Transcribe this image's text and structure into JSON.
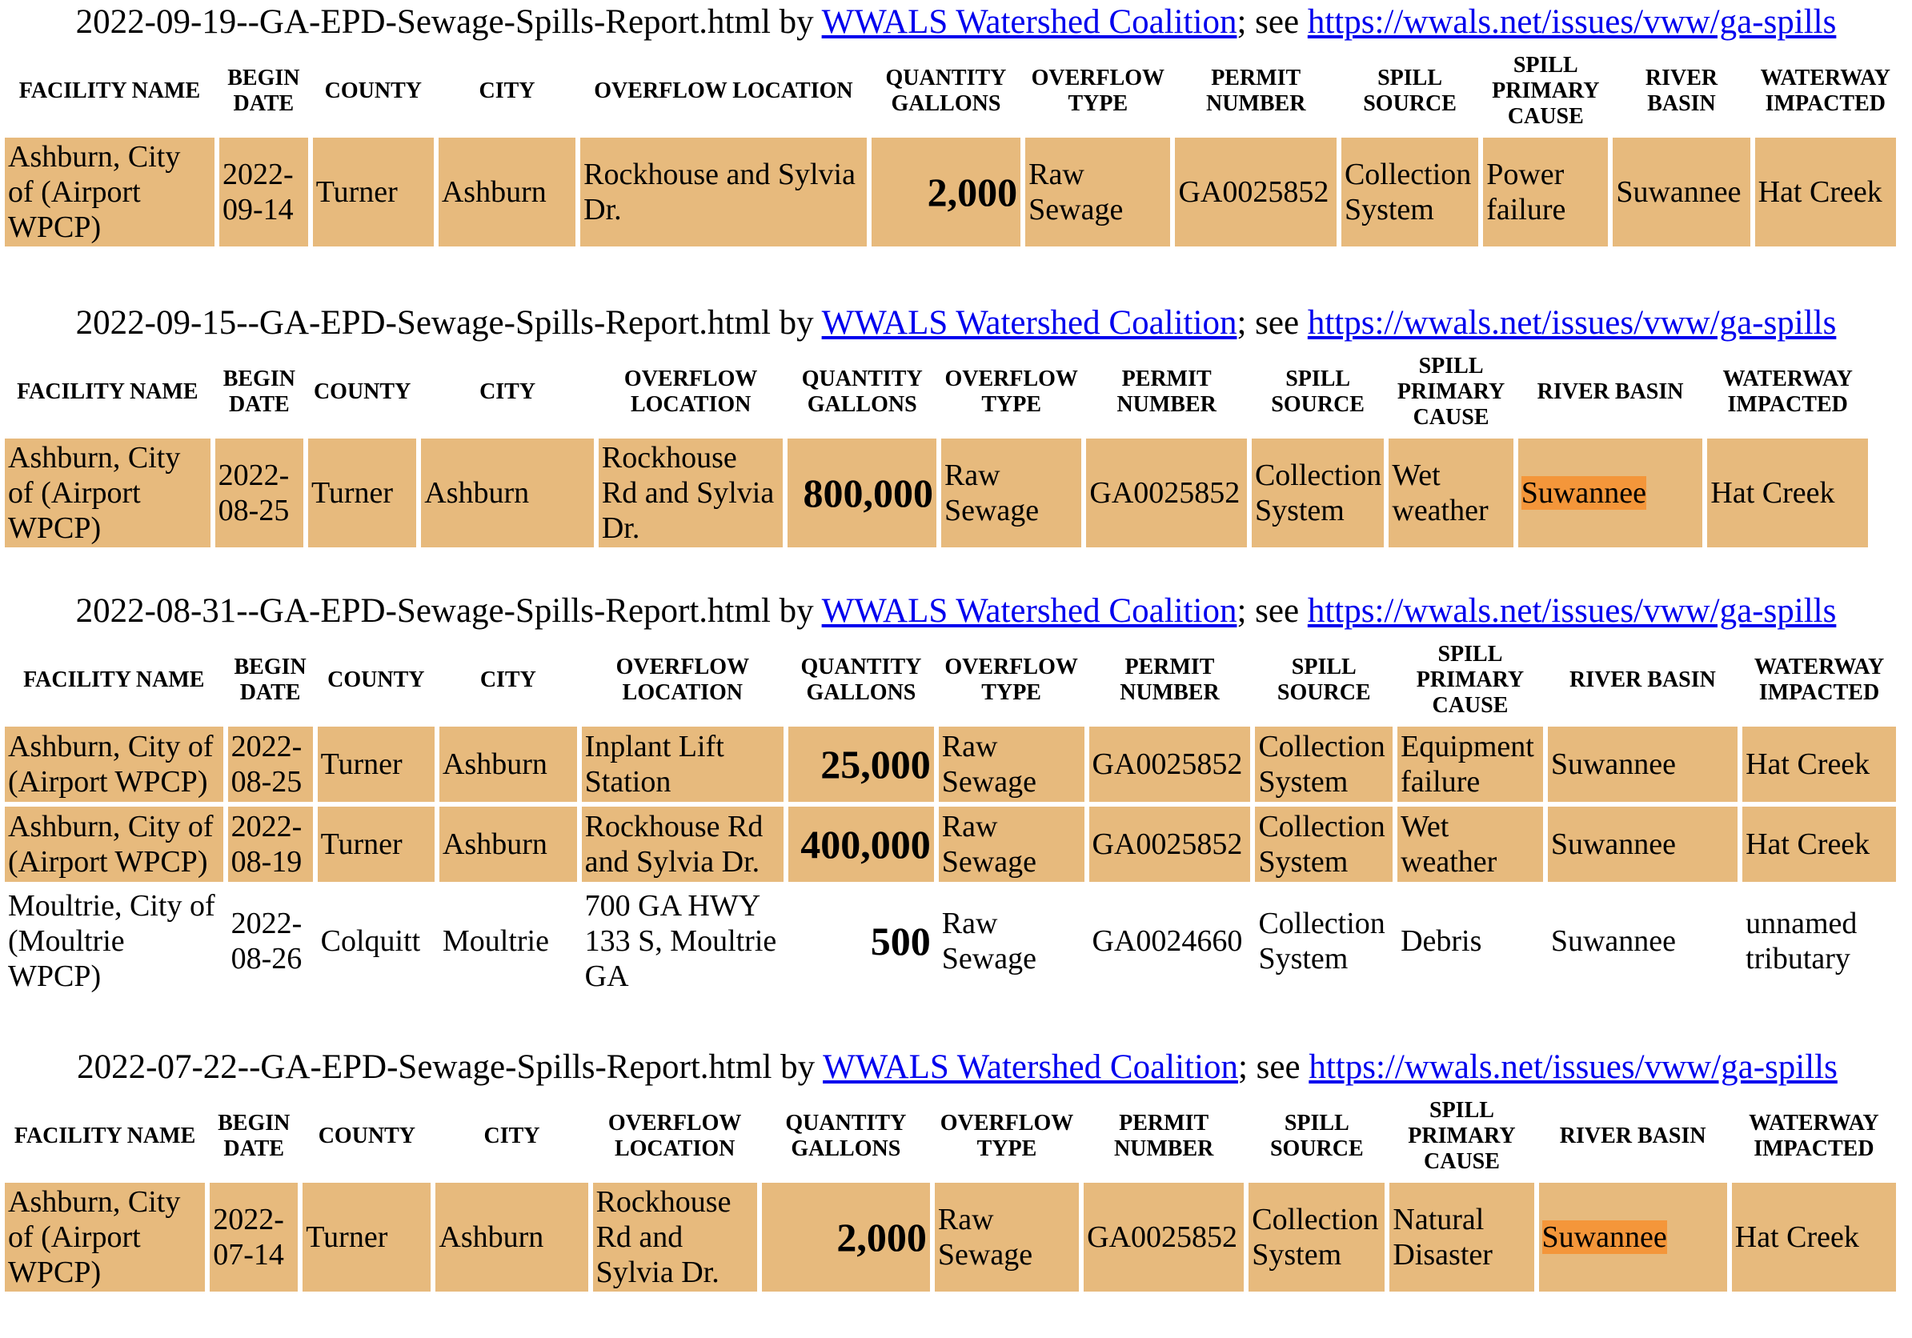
{
  "columns": [
    "FACILITY NAME",
    "BEGIN DATE",
    "COUNTY",
    "CITY",
    "OVERFLOW LOCATION",
    "QUANTITY GALLONS",
    "OVERFLOW TYPE",
    "PERMIT NUMBER",
    "SPILL SOURCE",
    "SPILL PRIMARY CAUSE",
    "RIVER BASIN",
    "WATERWAY IMPACTED"
  ],
  "title_by": " by ",
  "title_see": "; see ",
  "coalition_link": "WWALS Watershed Coalition",
  "spills_url": "https://wwals.net/issues/vww/ga-spills",
  "colors": {
    "row_highlight": "#e7ba7d",
    "text_highlight": "#f4963a",
    "link": "#0000ee"
  },
  "reports": [
    {
      "filename": "2022-09-19--GA-EPD-Sewage-Spills-Report.html",
      "rows": [
        {
          "facility": "Ashburn, City of (Airport WPCP)",
          "begin_date": "2022-09-14",
          "county": "Turner",
          "city": "Ashburn",
          "location": "Rockhouse and Sylvia Dr.",
          "quantity": "2,000",
          "type": "Raw Sewage",
          "permit": "GA0025852",
          "source": "Collection System",
          "cause": "Power failure",
          "basin": "Suwannee",
          "waterway": "Hat Creek",
          "highlighted": true
        }
      ]
    },
    {
      "filename": "2022-09-15--GA-EPD-Sewage-Spills-Report.html",
      "rows": [
        {
          "facility": "Ashburn, City of (Airport WPCP)",
          "begin_date": "2022-08-25",
          "county": "Turner",
          "city": "Ashburn",
          "location": "Rockhouse Rd and Sylvia Dr.",
          "quantity": "800,000",
          "type": "Raw Sewage",
          "permit": "GA0025852",
          "source": "Collection System",
          "cause": "Wet weather",
          "basin": "Suwannee",
          "waterway": "Hat Creek",
          "highlighted": true
        }
      ]
    },
    {
      "filename": "2022-08-31--GA-EPD-Sewage-Spills-Report.html",
      "rows": [
        {
          "facility": "Ashburn, City of (Airport WPCP)",
          "begin_date": "2022-08-25",
          "county": "Turner",
          "city": "Ashburn",
          "location": "Inplant Lift Station",
          "quantity": "25,000",
          "type": "Raw Sewage",
          "permit": "GA0025852",
          "source": "Collection System",
          "cause": "Equipment failure",
          "basin": "Suwannee",
          "waterway": "Hat Creek",
          "highlighted": true
        },
        {
          "facility": "Ashburn, City of (Airport WPCP)",
          "begin_date": "2022-08-19",
          "county": "Turner",
          "city": "Ashburn",
          "location": "Rockhouse Rd and Sylvia Dr.",
          "quantity": "400,000",
          "type": "Raw Sewage",
          "permit": "GA0025852",
          "source": "Collection System",
          "cause": "Wet weather",
          "basin": "Suwannee",
          "waterway": "Hat Creek",
          "highlighted": true
        },
        {
          "facility": "Moultrie, City of (Moultrie WPCP)",
          "begin_date": "2022-08-26",
          "county": "Colquitt",
          "city": "Moultrie",
          "location": "700 GA HWY 133 S, Moultrie GA",
          "quantity": "500",
          "type": "Raw Sewage",
          "permit": "GA0024660",
          "source": "Collection System",
          "cause": "Debris",
          "basin": "Suwannee",
          "waterway": "unnamed tributary",
          "highlighted": false
        }
      ]
    },
    {
      "filename": "2022-07-22--GA-EPD-Sewage-Spills-Report.html",
      "rows": [
        {
          "facility": "Ashburn, City of (Airport WPCP)",
          "begin_date": "2022-07-14",
          "county": "Turner",
          "city": "Ashburn",
          "location": "Rockhouse Rd and Sylvia Dr.",
          "quantity": "2,000",
          "type": "Raw Sewage",
          "permit": "GA0025852",
          "source": "Collection System",
          "cause": "Natural Disaster",
          "basin": "Suwannee",
          "waterway": "Hat Creek",
          "highlighted": true
        }
      ]
    }
  ]
}
